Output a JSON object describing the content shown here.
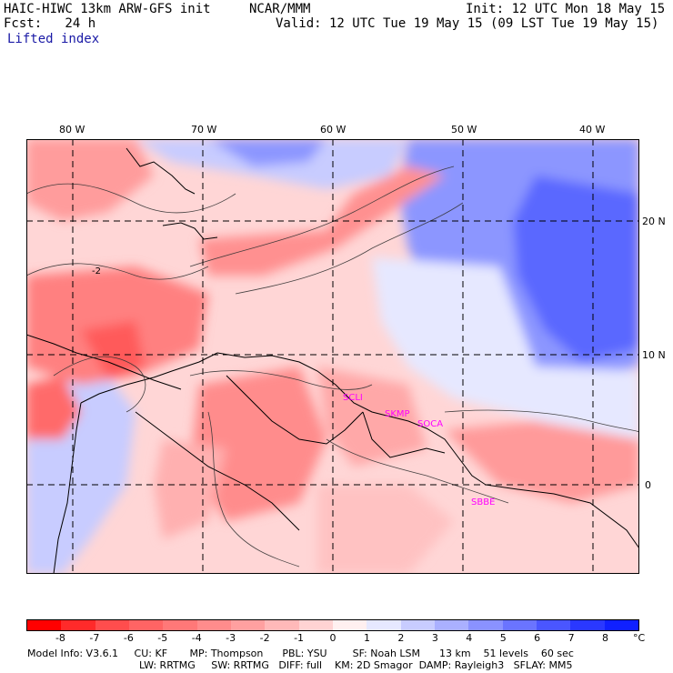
{
  "header": {
    "model": "HAIC-HIWC 13km ARW-GFS init",
    "org": "NCAR/MMM",
    "init": "Init: 12 UTC Mon 18 May 15",
    "fcst": "Fcst:   24 h",
    "valid": "Valid: 12 UTC Tue 19 May 15 (09 LST Tue 19 May 15)",
    "field": "Lifted index"
  },
  "map": {
    "lon_labels": [
      "80 W",
      "70 W",
      "60 W",
      "50 W",
      "40 W"
    ],
    "lat_labels": [
      "20 N",
      "10 N",
      "0"
    ],
    "station_labels": [
      "SCLI",
      "SKMP",
      "SOCA",
      "SBBE"
    ],
    "station_color": "#ff00ff",
    "contour_label": "-2"
  },
  "colorbar": {
    "ticks": [
      "-8",
      "-7",
      "-6",
      "-5",
      "-4",
      "-3",
      "-2",
      "-1",
      "0",
      "1",
      "2",
      "3",
      "4",
      "5",
      "6",
      "7",
      "8"
    ],
    "unit": "°C",
    "colors": [
      "#ff0000",
      "#ff2a2a",
      "#ff4d4d",
      "#ff6464",
      "#ff7878",
      "#ff8c8c",
      "#ffa0a0",
      "#ffb9b9",
      "#ffd3d3",
      "#fff0f0",
      "#e6e8ff",
      "#c8ccff",
      "#aab0ff",
      "#8a92ff",
      "#6a74ff",
      "#4a56ff",
      "#2a38ff",
      "#1020ff"
    ]
  },
  "footer": {
    "line1": "Model Info: V3.6.1     CU: KF       MP: Thompson      PBL: YSU        SF: Noah LSM      13 km    51 levels    60 sec",
    "line2": "LW: RRTMG     SW: RRTMG   DIFF: full    KM: 2D Smagor  DAMP: Rayleigh3   SFLAY: MM5"
  }
}
